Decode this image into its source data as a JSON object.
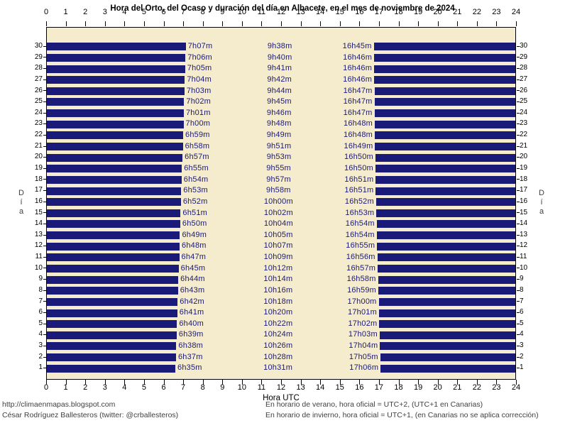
{
  "title": "Hora del Orto, del Ocaso y duración del día en Albacete, en el mes de noviembre de 2024",
  "axis": {
    "x_label": "Hora UTC",
    "y_label": "Día",
    "x_min": 0,
    "x_max": 24,
    "x_ticks": [
      0,
      1,
      2,
      3,
      4,
      5,
      6,
      7,
      8,
      9,
      10,
      11,
      12,
      13,
      14,
      15,
      16,
      17,
      18,
      19,
      20,
      21,
      22,
      23,
      24
    ]
  },
  "colors": {
    "night_bar": "#1a1a78",
    "time_label": "#1a1a78",
    "plot_bg": "#f5ebcd",
    "plot_border": "#000000",
    "axis_text": "#000000",
    "muted_text": "#404040"
  },
  "footer": {
    "left_line1": "http://climaenmapas.blogspot.com",
    "left_line2": "César Rodríguez Ballesteros (twitter: @crballesteros)",
    "right_line1": "En horario de verano, hora oficial = UTC+2, (UTC+1 en Canarias)",
    "right_line2": "En horario de invierno, hora oficial = UTC+1, (en Canarias no se aplica corrección)"
  },
  "chart_data": {
    "type": "bar",
    "title": "Hora del Orto, del Ocaso y duración del día en Albacete, en el mes de noviembre de 2024",
    "xlabel": "Hora UTC",
    "ylabel": "Día",
    "xlim": [
      0,
      24
    ],
    "days": [
      {
        "day": 30,
        "orto": "7h07m",
        "duracion": "9h38m",
        "ocaso": "16h45m"
      },
      {
        "day": 29,
        "orto": "7h06m",
        "duracion": "9h40m",
        "ocaso": "16h46m"
      },
      {
        "day": 28,
        "orto": "7h05m",
        "duracion": "9h41m",
        "ocaso": "16h46m"
      },
      {
        "day": 27,
        "orto": "7h04m",
        "duracion": "9h42m",
        "ocaso": "16h46m"
      },
      {
        "day": 26,
        "orto": "7h03m",
        "duracion": "9h44m",
        "ocaso": "16h47m"
      },
      {
        "day": 25,
        "orto": "7h02m",
        "duracion": "9h45m",
        "ocaso": "16h47m"
      },
      {
        "day": 24,
        "orto": "7h01m",
        "duracion": "9h46m",
        "ocaso": "16h47m"
      },
      {
        "day": 23,
        "orto": "7h00m",
        "duracion": "9h48m",
        "ocaso": "16h48m"
      },
      {
        "day": 22,
        "orto": "6h59m",
        "duracion": "9h49m",
        "ocaso": "16h48m"
      },
      {
        "day": 21,
        "orto": "6h58m",
        "duracion": "9h51m",
        "ocaso": "16h49m"
      },
      {
        "day": 20,
        "orto": "6h57m",
        "duracion": "9h53m",
        "ocaso": "16h50m"
      },
      {
        "day": 19,
        "orto": "6h55m",
        "duracion": "9h55m",
        "ocaso": "16h50m"
      },
      {
        "day": 18,
        "orto": "6h54m",
        "duracion": "9h57m",
        "ocaso": "16h51m"
      },
      {
        "day": 17,
        "orto": "6h53m",
        "duracion": "9h58m",
        "ocaso": "16h51m"
      },
      {
        "day": 16,
        "orto": "6h52m",
        "duracion": "10h00m",
        "ocaso": "16h52m"
      },
      {
        "day": 15,
        "orto": "6h51m",
        "duracion": "10h02m",
        "ocaso": "16h53m"
      },
      {
        "day": 14,
        "orto": "6h50m",
        "duracion": "10h04m",
        "ocaso": "16h54m"
      },
      {
        "day": 13,
        "orto": "6h49m",
        "duracion": "10h05m",
        "ocaso": "16h54m"
      },
      {
        "day": 12,
        "orto": "6h48m",
        "duracion": "10h07m",
        "ocaso": "16h55m"
      },
      {
        "day": 11,
        "orto": "6h47m",
        "duracion": "10h09m",
        "ocaso": "16h56m"
      },
      {
        "day": 10,
        "orto": "6h45m",
        "duracion": "10h12m",
        "ocaso": "16h57m"
      },
      {
        "day": 9,
        "orto": "6h44m",
        "duracion": "10h14m",
        "ocaso": "16h58m"
      },
      {
        "day": 8,
        "orto": "6h43m",
        "duracion": "10h16m",
        "ocaso": "16h59m"
      },
      {
        "day": 7,
        "orto": "6h42m",
        "duracion": "10h18m",
        "ocaso": "17h00m"
      },
      {
        "day": 6,
        "orto": "6h41m",
        "duracion": "10h20m",
        "ocaso": "17h01m"
      },
      {
        "day": 5,
        "orto": "6h40m",
        "duracion": "10h22m",
        "ocaso": "17h02m"
      },
      {
        "day": 4,
        "orto": "6h39m",
        "duracion": "10h24m",
        "ocaso": "17h03m"
      },
      {
        "day": 3,
        "orto": "6h38m",
        "duracion": "10h26m",
        "ocaso": "17h04m"
      },
      {
        "day": 2,
        "orto": "6h37m",
        "duracion": "10h28m",
        "ocaso": "17h05m"
      },
      {
        "day": 1,
        "orto": "6h35m",
        "duracion": "10h31m",
        "ocaso": "17h06m"
      }
    ]
  }
}
